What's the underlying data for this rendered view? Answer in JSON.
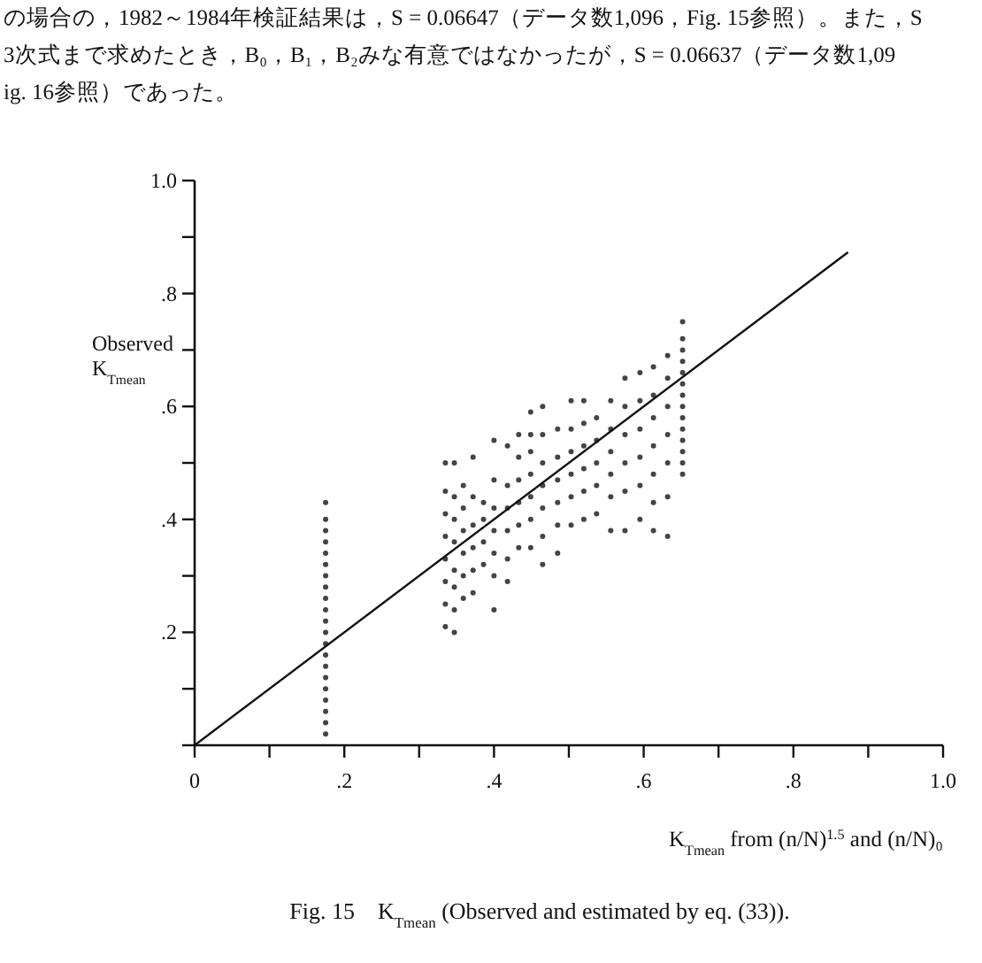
{
  "chart_data": {
    "type": "scatter",
    "xlabel": "K$_{Tmean}$ from (n/N)$^{1.5}$ and (n/N)₀",
    "ylabel": "Observed\nK$_{Tmean}$",
    "xlim": [
      0,
      1
    ],
    "ylim": [
      0,
      1
    ],
    "xticks": [
      {
        "value": 0,
        "label": "0"
      },
      {
        "value": 0.1,
        "label": null
      },
      {
        "value": 0.2,
        "label": ".2"
      },
      {
        "value": 0.3,
        "label": null
      },
      {
        "value": 0.4,
        "label": ".4"
      },
      {
        "value": 0.5,
        "label": null
      },
      {
        "value": 0.6,
        "label": ".6"
      },
      {
        "value": 0.7,
        "label": null
      },
      {
        "value": 0.8,
        "label": ".8"
      },
      {
        "value": 0.9,
        "label": null
      },
      {
        "value": 1.0,
        "label": "1.0"
      }
    ],
    "yticks": [
      {
        "value": 0,
        "label": null
      },
      {
        "value": 0.1,
        "label": null
      },
      {
        "value": 0.2,
        "label": ".2"
      },
      {
        "value": 0.3,
        "label": null
      },
      {
        "value": 0.4,
        "label": ".4"
      },
      {
        "value": 0.5,
        "label": null
      },
      {
        "value": 0.6,
        "label": ".6"
      },
      {
        "value": 0.7,
        "label": null
      },
      {
        "value": 0.8,
        "label": ".8"
      },
      {
        "value": 0.9,
        "label": null
      },
      {
        "value": 1.0,
        "label": "1.0"
      }
    ],
    "annotations": [
      "の場合の，1982～1984年検証結果は，S = 0.06647（データ数1,096，Fig. 15参照）。また，S",
      "3次式まで求めたとき，B₀，B₁，B₂みな有意ではなかったが，S = 0.06637（データ数1,09",
      "ig. 16参照）であった。",
      "Fig. 15　K$_{Tmean}$ (Observed and estimated by eq. (33))."
    ],
    "series": [
      {
        "type": "scatter",
        "marker": "circle",
        "color": "#444444",
        "x": [
          0.175,
          0.175,
          0.175,
          0.175,
          0.175,
          0.175,
          0.175,
          0.175,
          0.175,
          0.175,
          0.175,
          0.175,
          0.175,
          0.175,
          0.175,
          0.175,
          0.175,
          0.175,
          0.175,
          0.175,
          0.175
        ],
        "values": [
          0.02,
          0.04,
          0.06,
          0.08,
          0.1,
          0.12,
          0.14,
          0.16,
          0.18,
          0.2,
          0.22,
          0.24,
          0.26,
          0.28,
          0.3,
          0.32,
          0.34,
          0.36,
          0.38,
          0.4,
          0.43
        ]
      },
      {
        "type": "scatter",
        "marker": "circle",
        "color": "#444444",
        "x": [
          0.335,
          0.335,
          0.335,
          0.335,
          0.335,
          0.335,
          0.335,
          0.335
        ],
        "values": [
          0.21,
          0.25,
          0.29,
          0.33,
          0.37,
          0.41,
          0.45,
          0.5
        ]
      },
      {
        "type": "scatter",
        "marker": "circle",
        "color": "#444444",
        "x": [
          0.347,
          0.347,
          0.347,
          0.347,
          0.347,
          0.347,
          0.347,
          0.347
        ],
        "values": [
          0.2,
          0.24,
          0.28,
          0.31,
          0.36,
          0.4,
          0.44,
          0.5
        ]
      },
      {
        "type": "scatter",
        "marker": "circle",
        "color": "#444444",
        "x": [
          0.359,
          0.359,
          0.359,
          0.359,
          0.359,
          0.359
        ],
        "values": [
          0.26,
          0.3,
          0.34,
          0.38,
          0.42,
          0.46
        ]
      },
      {
        "type": "scatter",
        "marker": "circle",
        "color": "#444444",
        "x": [
          0.372,
          0.372,
          0.372,
          0.372,
          0.372,
          0.372
        ],
        "values": [
          0.27,
          0.31,
          0.35,
          0.39,
          0.44,
          0.51
        ]
      },
      {
        "type": "scatter",
        "marker": "circle",
        "color": "#444444",
        "x": [
          0.386,
          0.386,
          0.386,
          0.386
        ],
        "values": [
          0.32,
          0.36,
          0.4,
          0.43
        ]
      },
      {
        "type": "scatter",
        "marker": "circle",
        "color": "#444444",
        "x": [
          0.4,
          0.4,
          0.4,
          0.4,
          0.4,
          0.4,
          0.4
        ],
        "values": [
          0.24,
          0.3,
          0.34,
          0.38,
          0.42,
          0.47,
          0.54
        ]
      },
      {
        "type": "scatter",
        "marker": "circle",
        "color": "#444444",
        "x": [
          0.418,
          0.418,
          0.418,
          0.418,
          0.418,
          0.418
        ],
        "values": [
          0.29,
          0.33,
          0.38,
          0.42,
          0.46,
          0.53
        ]
      },
      {
        "type": "scatter",
        "marker": "circle",
        "color": "#444444",
        "x": [
          0.433,
          0.433,
          0.433,
          0.433,
          0.433,
          0.433
        ],
        "values": [
          0.35,
          0.39,
          0.43,
          0.47,
          0.51,
          0.55
        ]
      },
      {
        "type": "scatter",
        "marker": "circle",
        "color": "#444444",
        "x": [
          0.449,
          0.449,
          0.449,
          0.449,
          0.449,
          0.449,
          0.449
        ],
        "values": [
          0.35,
          0.4,
          0.44,
          0.48,
          0.52,
          0.55,
          0.59
        ]
      },
      {
        "type": "scatter",
        "marker": "circle",
        "color": "#444444",
        "x": [
          0.465,
          0.465,
          0.465,
          0.465,
          0.465,
          0.465,
          0.465
        ],
        "values": [
          0.32,
          0.37,
          0.42,
          0.46,
          0.5,
          0.55,
          0.6
        ]
      },
      {
        "type": "scatter",
        "marker": "circle",
        "color": "#444444",
        "x": [
          0.485,
          0.485,
          0.485,
          0.485,
          0.485,
          0.485
        ],
        "values": [
          0.34,
          0.39,
          0.43,
          0.47,
          0.51,
          0.56
        ]
      },
      {
        "type": "scatter",
        "marker": "circle",
        "color": "#444444",
        "x": [
          0.503,
          0.503,
          0.503,
          0.503,
          0.503,
          0.503
        ],
        "values": [
          0.39,
          0.44,
          0.48,
          0.52,
          0.56,
          0.61
        ]
      },
      {
        "type": "scatter",
        "marker": "circle",
        "color": "#444444",
        "x": [
          0.52,
          0.52,
          0.52,
          0.52,
          0.52,
          0.52
        ],
        "values": [
          0.4,
          0.45,
          0.49,
          0.53,
          0.57,
          0.61
        ]
      },
      {
        "type": "scatter",
        "marker": "circle",
        "color": "#444444",
        "x": [
          0.537,
          0.537,
          0.537,
          0.537,
          0.537
        ],
        "values": [
          0.41,
          0.46,
          0.5,
          0.54,
          0.58
        ]
      },
      {
        "type": "scatter",
        "marker": "circle",
        "color": "#444444",
        "x": [
          0.556,
          0.556,
          0.556,
          0.556,
          0.556,
          0.556
        ],
        "values": [
          0.38,
          0.44,
          0.48,
          0.52,
          0.56,
          0.61
        ]
      },
      {
        "type": "scatter",
        "marker": "circle",
        "color": "#444444",
        "x": [
          0.575,
          0.575,
          0.575,
          0.575,
          0.575,
          0.575
        ],
        "values": [
          0.38,
          0.45,
          0.5,
          0.55,
          0.6,
          0.65
        ]
      },
      {
        "type": "scatter",
        "marker": "circle",
        "color": "#444444",
        "x": [
          0.595,
          0.595,
          0.595,
          0.595,
          0.595,
          0.595
        ],
        "values": [
          0.4,
          0.46,
          0.51,
          0.56,
          0.61,
          0.66
        ]
      },
      {
        "type": "scatter",
        "marker": "circle",
        "color": "#444444",
        "x": [
          0.613,
          0.613,
          0.613,
          0.613,
          0.613,
          0.613,
          0.613
        ],
        "values": [
          0.38,
          0.43,
          0.48,
          0.53,
          0.58,
          0.62,
          0.67
        ]
      },
      {
        "type": "scatter",
        "marker": "circle",
        "color": "#444444",
        "x": [
          0.632,
          0.632,
          0.632,
          0.632,
          0.632,
          0.632,
          0.632
        ],
        "values": [
          0.37,
          0.44,
          0.5,
          0.55,
          0.6,
          0.65,
          0.69
        ]
      },
      {
        "type": "scatter",
        "marker": "circle",
        "color": "#444444",
        "x": [
          0.652,
          0.652,
          0.652,
          0.652,
          0.652,
          0.652,
          0.652,
          0.652,
          0.652,
          0.652,
          0.652,
          0.652,
          0.652,
          0.652
        ],
        "values": [
          0.48,
          0.5,
          0.52,
          0.54,
          0.56,
          0.58,
          0.6,
          0.62,
          0.64,
          0.66,
          0.68,
          0.7,
          0.72,
          0.75
        ]
      },
      {
        "type": "line",
        "marker": "none",
        "line_style": "solid",
        "color": "#111111",
        "x": [
          0,
          0.873
        ],
        "values": [
          0,
          0.873
        ]
      }
    ]
  }
}
